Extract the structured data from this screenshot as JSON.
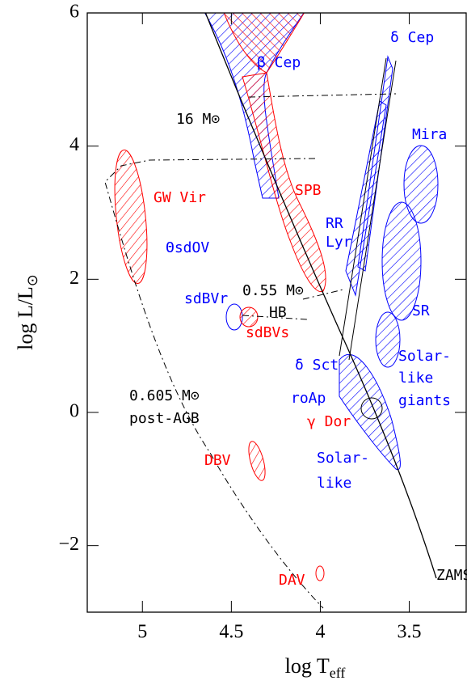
{
  "chart_data": {
    "type": "hr-diagram",
    "x_label": "log T",
    "x_label_sub": "eff",
    "y_label": "log L/L",
    "y_label_sub": "⊙",
    "xlim": [
      5.31,
      3.18
    ],
    "ylim": [
      -3,
      6
    ],
    "xticks": [
      5,
      4.5,
      4,
      3.5
    ],
    "yticks": [
      {
        "value": -2,
        "label": "−2"
      },
      0,
      2,
      4,
      6
    ],
    "annotations": [
      {
        "text": "β Cep",
        "color": "#0000ff"
      },
      {
        "text": "δ Cep",
        "color": "#0000ff"
      },
      {
        "text": "16 M⊙",
        "color": "#000000"
      },
      {
        "text": "Mira",
        "color": "#0000ff"
      },
      {
        "text": "GW Vir",
        "color": "#ff0000"
      },
      {
        "text": "SPB",
        "color": "#ff0000"
      },
      {
        "text": "RR",
        "color": "#0000ff"
      },
      {
        "text": "Lyr",
        "color": "#0000ff"
      },
      {
        "text": "ΘsdOV",
        "color": "#0000ff"
      },
      {
        "text": "sdBVr",
        "color": "#0000ff"
      },
      {
        "text": "0.55 M⊙",
        "color": "#000000"
      },
      {
        "text": "HB",
        "color": "#000000"
      },
      {
        "text": "SR",
        "color": "#0000ff"
      },
      {
        "text": "sdBVs",
        "color": "#ff0000"
      },
      {
        "text": "δ Sct",
        "color": "#0000ff"
      },
      {
        "text": "Solar-",
        "color": "#0000ff"
      },
      {
        "text": "like",
        "color": "#0000ff"
      },
      {
        "text": "giants",
        "color": "#0000ff"
      },
      {
        "text": "roAp",
        "color": "#0000ff"
      },
      {
        "text": "0.605 M⊙",
        "color": "#000000"
      },
      {
        "text": "post-AGB",
        "color": "#000000"
      },
      {
        "text": "γ Dor",
        "color": "#ff0000"
      },
      {
        "text": "Solar-",
        "color": "#0000ff"
      },
      {
        "text": "like",
        "color": "#0000ff"
      },
      {
        "text": "DBV",
        "color": "#ff0000"
      },
      {
        "text": "ZAMS",
        "color": "#000000"
      },
      {
        "text": "DAV",
        "color": "#ff0000"
      }
    ]
  }
}
